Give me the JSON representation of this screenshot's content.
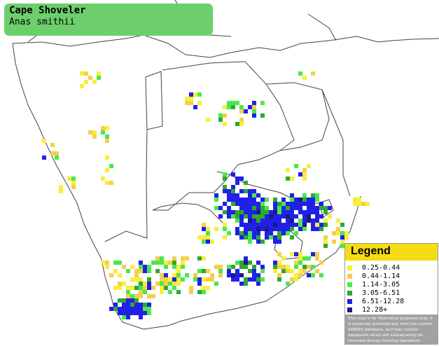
{
  "title": {
    "common_name": "Cape Shoveler",
    "scientific_name": "Anas smithii"
  },
  "legend": {
    "heading": "Legend",
    "items": [
      {
        "label": "0.25-0.44",
        "color": "#f9ee3c"
      },
      {
        "label": "0.44-1.14",
        "color": "#f5cf4a"
      },
      {
        "label": "1.14-3.05",
        "color": "#4be84b"
      },
      {
        "label": "3.05-6.51",
        "color": "#2fa82f"
      },
      {
        "label": "6.51-12.28",
        "color": "#2020e8"
      },
      {
        "label": "12.28+",
        "color": "#1a1a88"
      }
    ],
    "note": "This map is for illustrative purposes only; it is produced automatically from the current SABAP2 database, and may contain datapoints which will subsequently be removed during checking operations."
  }
}
